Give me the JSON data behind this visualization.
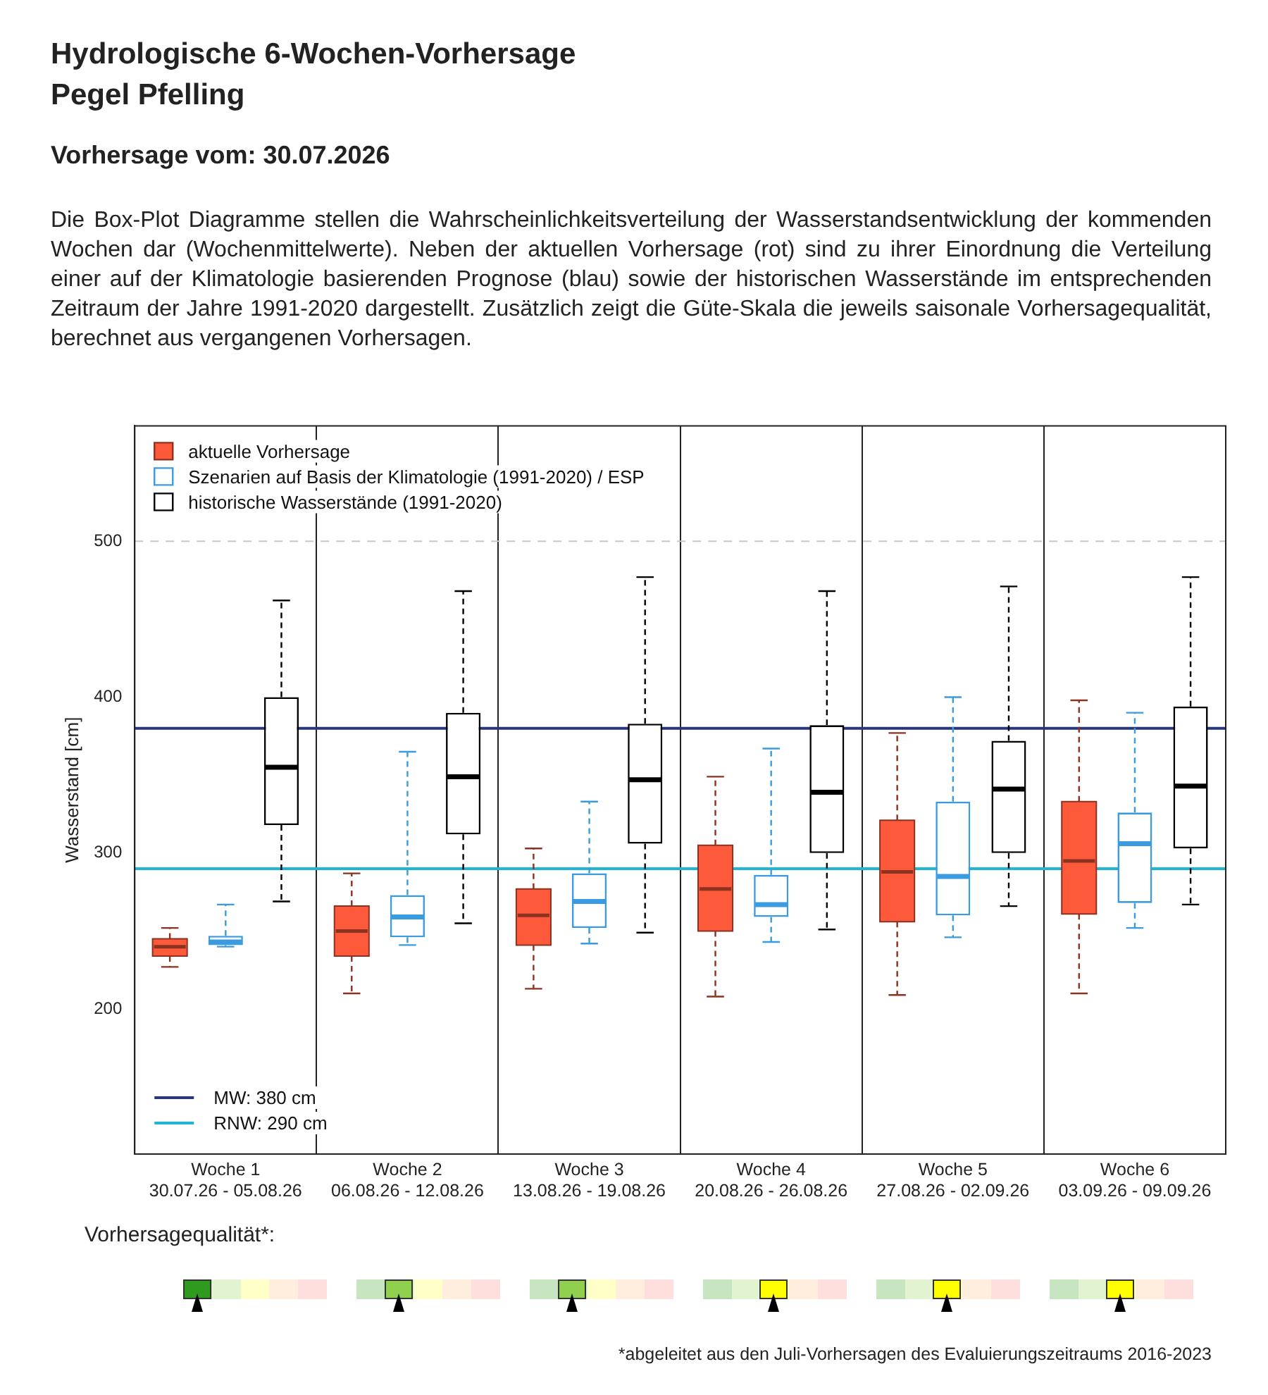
{
  "chart_data": {
    "type": "box",
    "title": "Hydrologische 6-Wochen-Vorhersage\nPegel Pfelling",
    "subtitle": "Vorhersage vom: 30.07.2026",
    "ylabel": "Wasserstand [cm]",
    "categories": [
      "Woche 1\n30.07.26 - 05.08.26",
      "Woche 2\n06.08.26 - 12.08.26",
      "Woche 3\n13.08.26 - 19.08.26",
      "Woche 4\n20.08.26 - 26.08.26",
      "Woche 5\n27.08.26 - 02.09.26",
      "Woche 6\n03.09.26 - 09.09.26"
    ],
    "series": [
      {
        "name": "aktuelle Vorhersage",
        "color": "#fd5a3c",
        "boxes": [
          {
            "low": 227,
            "q1": 234,
            "median": 240,
            "q3": 245,
            "high": 252
          },
          {
            "low": 210,
            "q1": 234,
            "median": 250,
            "q3": 266,
            "high": 287
          },
          {
            "low": 213,
            "q1": 241,
            "median": 260,
            "q3": 277,
            "high": 303
          },
          {
            "low": 208,
            "q1": 250,
            "median": 277,
            "q3": 305,
            "high": 349
          },
          {
            "low": 209,
            "q1": 256,
            "median": 288,
            "q3": 321,
            "high": 377
          },
          {
            "low": 210,
            "q1": 261,
            "median": 295,
            "q3": 333,
            "high": 398
          }
        ]
      },
      {
        "name": "Szenarien auf Basis der Klimatologie (1991-2020) / ESP",
        "color": "#3a9be0",
        "boxes": [
          {
            "low": 240,
            "q1": 241,
            "median": 243,
            "q3": 247,
            "high": 267
          },
          {
            "low": 241,
            "q1": 246,
            "median": 259,
            "q3": 273,
            "high": 365
          },
          {
            "low": 242,
            "q1": 252,
            "median": 269,
            "q3": 287,
            "high": 333
          },
          {
            "low": 243,
            "q1": 259,
            "median": 267,
            "q3": 286,
            "high": 367
          },
          {
            "low": 246,
            "q1": 260,
            "median": 285,
            "q3": 333,
            "high": 400
          },
          {
            "low": 252,
            "q1": 268,
            "median": 306,
            "q3": 326,
            "high": 390
          }
        ]
      },
      {
        "name": "historische Wasserstände (1991-2020)",
        "color": "#000000",
        "boxes": [
          {
            "low": 269,
            "q1": 318,
            "median": 355,
            "q3": 400,
            "high": 462
          },
          {
            "low": 255,
            "q1": 312,
            "median": 349,
            "q3": 390,
            "high": 468
          },
          {
            "low": 249,
            "q1": 306,
            "median": 347,
            "q3": 383,
            "high": 477
          },
          {
            "low": 251,
            "q1": 300,
            "median": 339,
            "q3": 382,
            "high": 468
          },
          {
            "low": 266,
            "q1": 300,
            "median": 341,
            "q3": 372,
            "high": 471
          },
          {
            "low": 267,
            "q1": 303,
            "median": 343,
            "q3": 394,
            "high": 477
          }
        ]
      }
    ],
    "ylim": [
      107,
      574
    ],
    "yticks": [
      200,
      300,
      400,
      500
    ],
    "grid": "x",
    "legend": "top left",
    "ref_lines": [
      {
        "axis": "y",
        "value": 380,
        "label": "MW: 380 cm",
        "color": "#28367c"
      },
      {
        "axis": "y",
        "value": 290,
        "label": "RNW: 290 cm",
        "color": "#1fb5d6"
      },
      {
        "axis": "y",
        "value": 500,
        "color": "#c8c8c8",
        "line_style": "dashed"
      }
    ],
    "annotations": [
      "Die Box-Plot Diagramme stellen die Wahrscheinlichkeitsverteilung der Wasserstandsentwicklung der kommenden Wochen dar (Wochenmittelwerte). Neben der aktuellen Vorhersage (rot) sind zu ihrer Einordnung die Verteilung einer auf der Klimatologie basierenden Prognose (blau) sowie der historischen Wasserstände im entsprechenden Zeitraum der Jahre 1991-2020 dargestellt. Zusätzlich zeigt die Güte-Skala die jeweils saisonale Vorhersagequalität, berechnet aus vergangenen Vorhersagen.",
      "Vorhersagequalität*:",
      "*abgeleitet aus den Juli-Vorhersagen des Evaluierungszeitraums 2016-2023"
    ]
  }
}
